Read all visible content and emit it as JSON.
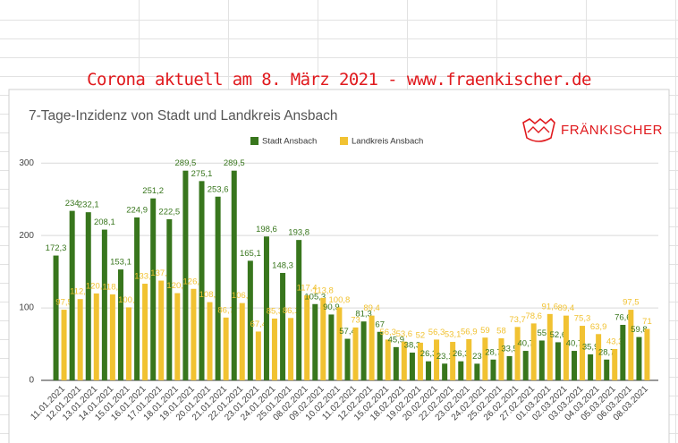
{
  "page": {
    "banner": "Corona aktuell am 8. März 2021 - www.fraenkischer.de",
    "logo": "FRÄNKISCHER"
  },
  "chart_data": {
    "type": "bar",
    "title": "7-Tage-Inzidenz von Stadt und Landkreis Ansbach",
    "categories": [
      "11.01.2021",
      "12.01.2021",
      "13.01.2021",
      "14.01.2021",
      "15.01.2021",
      "16.01.2021",
      "17.01.2021",
      "18.01.2021",
      "19.01.2021",
      "20.01.2021",
      "21.01.2021",
      "22.01.2021",
      "23.01.2021",
      "24.01.2021",
      "25.01.2021",
      "08.02.2021",
      "09.02.2021",
      "10.02.2021",
      "11.02.2021",
      "12.02.2021",
      "15.02.2021",
      "18.02.2021",
      "19.02.2021",
      "20.02.2021",
      "22.02.2021",
      "23.02.2021",
      "24.02.2021",
      "25.02.2021",
      "26.02.2021",
      "27.02.2021",
      "01.03.2021",
      "02.03.2021",
      "03.03.2021",
      "04.03.2021",
      "05.03.2021",
      "06.03.2021",
      "08.03.2021"
    ],
    "series": [
      {
        "name": "Stadt Ansbach",
        "color": "#38761d",
        "values": [
          172.3,
          234,
          232.1,
          208.1,
          153.1,
          224.9,
          251.2,
          222.5,
          289.5,
          275.1,
          253.6,
          289.5,
          165.1,
          198.6,
          148.3,
          193.8,
          105.3,
          90.9,
          57.4,
          81.3,
          67,
          45.9,
          38.3,
          26.3,
          23.1,
          26.3,
          23,
          28.7,
          33.5,
          40.7,
          55,
          52.6,
          40.7,
          35.9,
          28.7,
          76.6,
          59.8
        ],
        "value_labels": [
          "172,3",
          "234",
          "232,1",
          "208,1",
          "153,1",
          "224,9",
          "251,2",
          "222,5",
          "289,5",
          "275,1",
          "253,6",
          "289,5",
          "165,1",
          "198,6",
          "148,3",
          "193,8",
          "105,3",
          "90,9",
          "57,4",
          "81,3",
          "67",
          "45,9",
          "38,3",
          "26,3",
          "23,1",
          "26,3",
          "23",
          "28,7",
          "33,5",
          "40,7",
          "55",
          "52,6",
          "40,7",
          "35,9",
          "28,7",
          "76,6",
          "59,8"
        ]
      },
      {
        "name": "Landkreis Ansbach",
        "color": "#f1c232",
        "values": [
          97.5,
          112.2,
          120,
          118.7,
          100.8,
          133.4,
          137.7,
          120.4,
          126.3,
          108,
          86.7,
          106.7,
          67.4,
          85.3,
          86.1,
          117.4,
          113.8,
          100.8,
          73,
          89.4,
          56.3,
          53.6,
          52,
          56.3,
          53.1,
          56.9,
          59,
          58,
          73.7,
          78.6,
          91.6,
          89.4,
          75.3,
          63.9,
          43.3,
          97.5,
          71
        ],
        "value_labels": [
          "97,5",
          "112,2",
          "120,0",
          "118,7",
          "100,8",
          "133,4",
          "137,7",
          "120,4",
          "126,3",
          "108,0",
          "86,7",
          "106,7",
          "67,4",
          "85,3",
          "86,1",
          "117,4",
          "113,8",
          "100,8",
          "73",
          "89,4",
          "56,3",
          "53,6",
          "52",
          "56,3",
          "53,1",
          "56,9",
          "59",
          "58",
          "73,7",
          "78,6",
          "91,6",
          "89,4",
          "75,3",
          "63,9",
          "43,3",
          "97,5",
          "71"
        ]
      }
    ],
    "ylim": [
      0,
      320
    ],
    "yticks": [
      0,
      100,
      200,
      300
    ],
    "grid": true,
    "legend": "top"
  }
}
